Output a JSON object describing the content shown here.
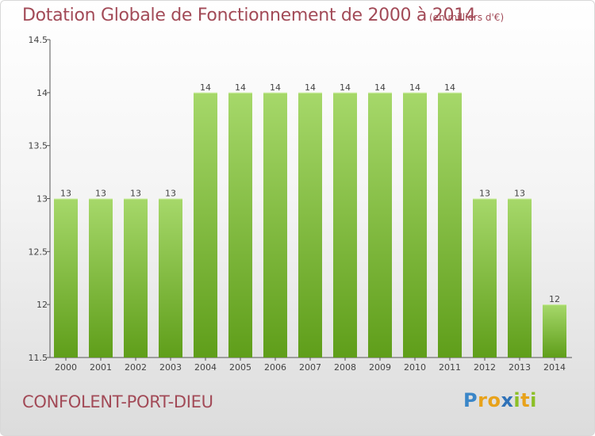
{
  "chart_data": {
    "type": "bar",
    "title": "Dotation Globale de Fonctionnement de 2000 à 2014",
    "subtitle": "(en milliers d'€)",
    "xlabel": "",
    "ylabel": "",
    "categories": [
      "2000",
      "2001",
      "2002",
      "2003",
      "2004",
      "2005",
      "2006",
      "2007",
      "2008",
      "2009",
      "2010",
      "2011",
      "2012",
      "2013",
      "2014"
    ],
    "values": [
      13,
      13,
      13,
      13,
      14,
      14,
      14,
      14,
      14,
      14,
      14,
      14,
      13,
      13,
      12
    ],
    "ylim": [
      11.5,
      14.5
    ],
    "yticks": [
      11.5,
      12,
      12.5,
      13,
      13.5,
      14,
      14.5
    ],
    "ytick_labels": [
      "11.5",
      "12",
      "12.5",
      "13",
      "13.5",
      "14",
      "14.5"
    ],
    "grid": false,
    "bar_color": "#8cc63f"
  },
  "footer": {
    "commune": "CONFOLENT-PORT-DIEU",
    "logo": {
      "p": "P",
      "r": "r",
      "o": "o",
      "x": "x",
      "i": "i",
      "t": "t",
      "i2": "i"
    }
  }
}
